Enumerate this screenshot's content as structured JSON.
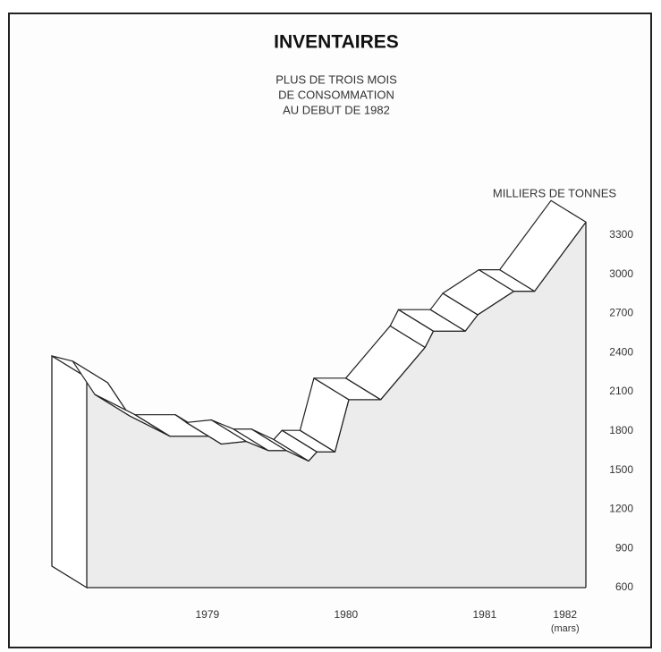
{
  "chart_data": {
    "type": "ribbon-area",
    "title": "INVENTAIRES",
    "subtitle": [
      "PLUS DE TROIS MOIS",
      "DE CONSOMMATION",
      "AU DEBUT DE 1982"
    ],
    "y_label": "MILLIERS DE TONNES",
    "x_note": "(mars)",
    "x": [
      1978.13,
      1978.28,
      1978.44,
      1978.73,
      1979.02,
      1979.1,
      1979.28,
      1979.44,
      1979.57,
      1979.73,
      1979.79,
      1979.92,
      1980.02,
      1980.25,
      1980.57,
      1980.63,
      1980.86,
      1980.95,
      1981.21,
      1981.36,
      1981.73
    ],
    "values": [
      2210,
      2170,
      1915,
      1760,
      1760,
      1700,
      1720,
      1650,
      1650,
      1570,
      1640,
      1640,
      2040,
      2040,
      2440,
      2565,
      2565,
      2690,
      2870,
      2870,
      3400
    ],
    "color": "#ececec",
    "xlim": [
      1978.13,
      1981.73
    ],
    "xticks": [
      1979,
      1980,
      1981,
      {
        "value": 1981.58,
        "label": "1982"
      }
    ],
    "ylim": [
      600,
      3450
    ],
    "yticks": [
      600,
      900,
      1200,
      1500,
      1800,
      2100,
      2400,
      2700,
      3000,
      3300
    ]
  }
}
